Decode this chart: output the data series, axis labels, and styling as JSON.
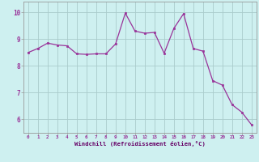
{
  "x": [
    0,
    1,
    2,
    3,
    4,
    5,
    6,
    7,
    8,
    9,
    10,
    11,
    12,
    13,
    14,
    15,
    16,
    17,
    18,
    19,
    20,
    21,
    22,
    23
  ],
  "y": [
    8.5,
    8.65,
    8.85,
    8.78,
    8.75,
    8.45,
    8.43,
    8.45,
    8.45,
    8.82,
    9.97,
    9.3,
    9.22,
    9.25,
    8.47,
    9.4,
    9.95,
    8.65,
    8.55,
    7.45,
    7.28,
    6.55,
    6.27,
    5.8
  ],
  "ylim": [
    5.5,
    10.4
  ],
  "xlim": [
    -0.5,
    23.5
  ],
  "line_color": "#993399",
  "marker_color": "#993399",
  "bg_color": "#cef0f0",
  "grid_color": "#aacccc",
  "xlabel": "Windchill (Refroidissement éolien,°C)",
  "xlabel_color": "#660066",
  "xtick_labels": [
    "0",
    "1",
    "2",
    "3",
    "4",
    "5",
    "6",
    "7",
    "8",
    "9",
    "10",
    "11",
    "12",
    "13",
    "14",
    "15",
    "16",
    "17",
    "18",
    "19",
    "20",
    "21",
    "22",
    "23"
  ],
  "ytick_vals": [
    6,
    7,
    8,
    9,
    10
  ],
  "axis_color": "#993399",
  "spine_color": "#999999"
}
